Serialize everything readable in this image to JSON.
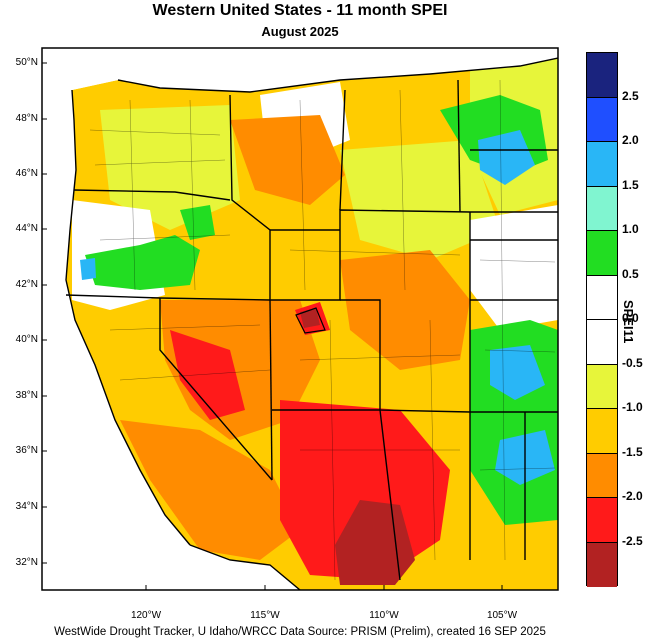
{
  "title": "Western United States - 11 month SPEI",
  "subtitle": "August 2025",
  "footer": "WestWide Drought Tracker, U Idaho/WRCC Data Source: PRISM (Prelim), created 16 SEP 2025",
  "lat_labels": [
    "50°N",
    "48°N",
    "46°N",
    "44°N",
    "42°N",
    "40°N",
    "38°N",
    "36°N",
    "34°N",
    "32°N"
  ],
  "lon_labels": [
    "120°W",
    "115°W",
    "110°W",
    "105°W"
  ],
  "colorbar": {
    "label": "SPEI11",
    "ticks": [
      "2.5",
      "2.0",
      "1.5",
      "1.0",
      "0.5",
      "0.0",
      "-0.5",
      "-1.0",
      "-1.5",
      "-2.0",
      "-2.5"
    ],
    "colors": [
      "#1a237e",
      "#1f4fff",
      "#29b6f6",
      "#80f5d0",
      "#22dd22",
      "#ffffff",
      "#ffffff",
      "#e7f53a",
      "#ffcc00",
      "#ff8c00",
      "#ff1a1a",
      "#b22222"
    ]
  },
  "colors": {
    "extreme_dry": "#b22222",
    "severe_dry": "#ff1a1a",
    "moderate_dry": "#ff8c00",
    "wet": "#22dd22",
    "very_wet": "#29b6f6"
  }
}
